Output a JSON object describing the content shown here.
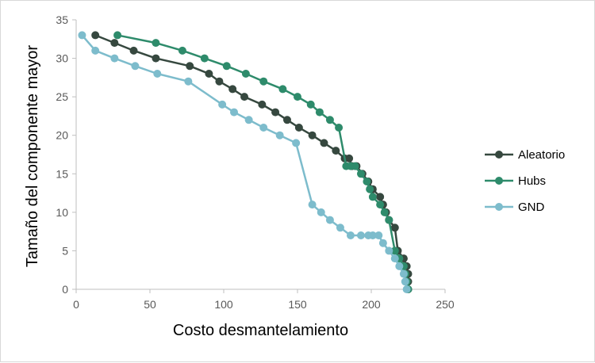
{
  "chart_data": {
    "type": "line",
    "title": "",
    "xlabel": "Costo desmantelamiento",
    "ylabel": "Tamaño del componente  mayor",
    "xlim": [
      0,
      250
    ],
    "ylim": [
      0,
      35
    ],
    "xticks": [
      0,
      50,
      100,
      150,
      200,
      250
    ],
    "yticks": [
      0,
      5,
      10,
      15,
      20,
      25,
      30,
      35
    ],
    "grid": false,
    "legend_position": "right",
    "series": [
      {
        "name": "Aleatorio",
        "color": "#36483f",
        "points": [
          [
            13,
            33
          ],
          [
            26,
            32
          ],
          [
            39,
            31
          ],
          [
            54,
            30
          ],
          [
            77,
            29
          ],
          [
            90,
            28
          ],
          [
            97,
            27
          ],
          [
            106,
            26
          ],
          [
            114,
            25
          ],
          [
            126,
            24
          ],
          [
            135,
            23
          ],
          [
            143,
            22
          ],
          [
            151,
            21
          ],
          [
            160,
            20
          ],
          [
            168,
            19
          ],
          [
            176,
            18
          ],
          [
            182,
            17
          ],
          [
            185,
            17
          ],
          [
            187,
            16
          ],
          [
            190,
            16
          ],
          [
            194,
            15
          ],
          [
            198,
            14
          ],
          [
            201,
            13
          ],
          [
            206,
            12
          ],
          [
            208,
            11
          ],
          [
            210,
            10
          ],
          [
            212,
            9
          ],
          [
            216,
            8
          ],
          [
            218,
            5
          ],
          [
            222,
            4
          ],
          [
            224,
            3
          ],
          [
            225,
            2
          ],
          [
            225,
            1
          ],
          [
            225,
            0
          ]
        ]
      },
      {
        "name": "Hubs",
        "color": "#2e8b6b",
        "points": [
          [
            28,
            33
          ],
          [
            54,
            32
          ],
          [
            72,
            31
          ],
          [
            87,
            30
          ],
          [
            102,
            29
          ],
          [
            115,
            28
          ],
          [
            127,
            27
          ],
          [
            140,
            26
          ],
          [
            150,
            25
          ],
          [
            159,
            24
          ],
          [
            165,
            23
          ],
          [
            172,
            22
          ],
          [
            178,
            21
          ],
          [
            183,
            16
          ],
          [
            186,
            16
          ],
          [
            189,
            16
          ],
          [
            193,
            15
          ],
          [
            197,
            14
          ],
          [
            199,
            13
          ],
          [
            201,
            12
          ],
          [
            206,
            11
          ],
          [
            209,
            10
          ],
          [
            212,
            9
          ],
          [
            216,
            5
          ],
          [
            219,
            4
          ],
          [
            222,
            3
          ],
          [
            223,
            2
          ],
          [
            224,
            1
          ],
          [
            225,
            0
          ]
        ]
      },
      {
        "name": "GND",
        "color": "#7dbccc",
        "points": [
          [
            4,
            33
          ],
          [
            13,
            31
          ],
          [
            26,
            30
          ],
          [
            40,
            29
          ],
          [
            55,
            28
          ],
          [
            76,
            27
          ],
          [
            99,
            24
          ],
          [
            107,
            23
          ],
          [
            117,
            22
          ],
          [
            127,
            21
          ],
          [
            138,
            20
          ],
          [
            149,
            19
          ],
          [
            160,
            11
          ],
          [
            166,
            10
          ],
          [
            172,
            9
          ],
          [
            179,
            8
          ],
          [
            186,
            7
          ],
          [
            193,
            7
          ],
          [
            198,
            7
          ],
          [
            201,
            7
          ],
          [
            205,
            7
          ],
          [
            208,
            6
          ],
          [
            212,
            5
          ],
          [
            216,
            4
          ],
          [
            219,
            3
          ],
          [
            222,
            2
          ],
          [
            223,
            1
          ],
          [
            224,
            0
          ]
        ]
      }
    ]
  }
}
